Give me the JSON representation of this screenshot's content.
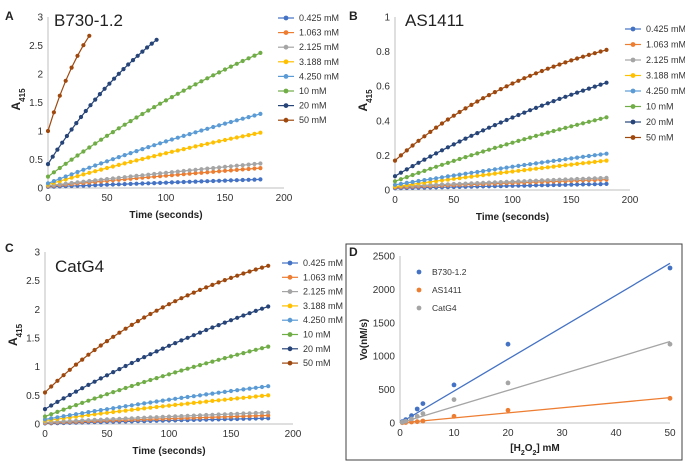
{
  "chart_data": [
    {
      "panel_letter": "A",
      "type": "scatter",
      "title": "B730-1.2",
      "xlabel": "Time (seconds)",
      "ylabel": "A",
      "ylabel_sub": "415",
      "xlim": [
        0,
        200
      ],
      "ylim": [
        0,
        3
      ],
      "xticks": [
        0,
        50,
        100,
        150,
        200
      ],
      "yticks": [
        0,
        0.5,
        1,
        1.5,
        2,
        2.5,
        3
      ],
      "ytick_labels": [
        "0",
        "0.5",
        "1",
        "1.5",
        "2",
        "2.5",
        "3"
      ],
      "legend_position": "right",
      "series": [
        {
          "name": "0.425 mM",
          "color": "#4472C4",
          "y0": 0.02,
          "y1": 0.15,
          "k": 0.1,
          "tEnd": 180,
          "step": 5
        },
        {
          "name": "1.063 mM",
          "color": "#ED7D31",
          "y0": 0.03,
          "y1": 0.35,
          "k": 0.2,
          "tEnd": 180,
          "step": 5
        },
        {
          "name": "2.125 mM",
          "color": "#A5A5A5",
          "y0": 0.04,
          "y1": 0.43,
          "k": 0.2,
          "tEnd": 180,
          "step": 5
        },
        {
          "name": "3.188 mM",
          "color": "#FFC000",
          "y0": 0.06,
          "y1": 0.97,
          "k": 0.4,
          "tEnd": 180,
          "step": 5
        },
        {
          "name": "4.250 mM",
          "color": "#5B9BD5",
          "y0": 0.08,
          "y1": 1.3,
          "k": 0.4,
          "tEnd": 180,
          "step": 5
        },
        {
          "name": "10 mM",
          "color": "#70AD47",
          "y0": 0.2,
          "y1": 2.37,
          "k": 0.5,
          "tEnd": 180,
          "step": 5
        },
        {
          "name": "20 mM",
          "color": "#264478",
          "y0": 0.42,
          "y1": 2.65,
          "k": 0.7,
          "tEnd": 95,
          "step": 4
        },
        {
          "name": "50 mM",
          "color": "#9E480E",
          "y0": 1.0,
          "y1": 2.67,
          "k": 0.8,
          "tEnd": 35,
          "step": 5
        }
      ]
    },
    {
      "panel_letter": "B",
      "type": "scatter",
      "title": "AS1411",
      "xlabel": "Time (seconds)",
      "ylabel": "A",
      "ylabel_sub": "415",
      "xlim": [
        0,
        200
      ],
      "ylim": [
        0,
        1
      ],
      "xticks": [
        0,
        50,
        100,
        150,
        200
      ],
      "yticks": [
        0,
        0.2,
        0.4,
        0.6,
        0.8,
        1
      ],
      "ytick_labels": [
        "0",
        "0.2",
        "0.4",
        "0.6",
        "0.8",
        "1"
      ],
      "legend_position": "right",
      "series": [
        {
          "name": "0.425 mM",
          "color": "#4472C4",
          "y0": 0.01,
          "y1": 0.035,
          "k": 0.1,
          "tEnd": 180,
          "step": 5
        },
        {
          "name": "1.063 mM",
          "color": "#ED7D31",
          "y0": 0.015,
          "y1": 0.06,
          "k": 0.1,
          "tEnd": 180,
          "step": 5
        },
        {
          "name": "2.125 mM",
          "color": "#A5A5A5",
          "y0": 0.02,
          "y1": 0.07,
          "k": 0.1,
          "tEnd": 180,
          "step": 5
        },
        {
          "name": "3.188 mM",
          "color": "#FFC000",
          "y0": 0.02,
          "y1": 0.17,
          "k": 0.2,
          "tEnd": 180,
          "step": 5
        },
        {
          "name": "4.250 mM",
          "color": "#5B9BD5",
          "y0": 0.03,
          "y1": 0.21,
          "k": 0.2,
          "tEnd": 180,
          "step": 5
        },
        {
          "name": "10 mM",
          "color": "#70AD47",
          "y0": 0.05,
          "y1": 0.42,
          "k": 0.4,
          "tEnd": 180,
          "step": 5
        },
        {
          "name": "20 mM",
          "color": "#264478",
          "y0": 0.08,
          "y1": 0.62,
          "k": 0.6,
          "tEnd": 180,
          "step": 5
        },
        {
          "name": "50 mM",
          "color": "#9E480E",
          "y0": 0.17,
          "y1": 0.81,
          "k": 1.2,
          "tEnd": 180,
          "step": 5
        }
      ]
    },
    {
      "panel_letter": "C",
      "type": "scatter",
      "title": "CatG4",
      "xlabel": "Time (seconds)",
      "ylabel": "A",
      "ylabel_sub": "415",
      "xlim": [
        0,
        200
      ],
      "ylim": [
        0,
        3
      ],
      "xticks": [
        0,
        50,
        100,
        150,
        200
      ],
      "yticks": [
        0,
        0.5,
        1,
        1.5,
        2,
        2.5,
        3
      ],
      "ytick_labels": [
        "0",
        "0.5",
        "1",
        "1.5",
        "2",
        "2.5",
        "3"
      ],
      "legend_position": "right",
      "series": [
        {
          "name": "0.425 mM",
          "color": "#4472C4",
          "y0": 0.01,
          "y1": 0.1,
          "k": 0.1,
          "tEnd": 180,
          "step": 5
        },
        {
          "name": "1.063 mM",
          "color": "#ED7D31",
          "y0": 0.02,
          "y1": 0.15,
          "k": 0.1,
          "tEnd": 180,
          "step": 5
        },
        {
          "name": "2.125 mM",
          "color": "#A5A5A5",
          "y0": 0.03,
          "y1": 0.2,
          "k": 0.2,
          "tEnd": 180,
          "step": 5
        },
        {
          "name": "3.188 mM",
          "color": "#FFC000",
          "y0": 0.06,
          "y1": 0.5,
          "k": 0.3,
          "tEnd": 180,
          "step": 5
        },
        {
          "name": "4.250 mM",
          "color": "#5B9BD5",
          "y0": 0.08,
          "y1": 0.66,
          "k": 0.3,
          "tEnd": 180,
          "step": 5
        },
        {
          "name": "10 mM",
          "color": "#70AD47",
          "y0": 0.13,
          "y1": 1.35,
          "k": 0.4,
          "tEnd": 180,
          "step": 5
        },
        {
          "name": "20 mM",
          "color": "#264478",
          "y0": 0.26,
          "y1": 2.05,
          "k": 0.5,
          "tEnd": 180,
          "step": 5
        },
        {
          "name": "50 mM",
          "color": "#9E480E",
          "y0": 0.55,
          "y1": 2.76,
          "k": 1.2,
          "tEnd": 180,
          "step": 5
        }
      ]
    },
    {
      "panel_letter": "D",
      "type": "scatter",
      "title": "",
      "xlabel_parts": [
        "[H",
        "2",
        "O",
        "2",
        "] mM"
      ],
      "ylabel": "Vo(nM/s)",
      "xlim": [
        0,
        50
      ],
      "ylim": [
        0,
        2500
      ],
      "xticks": [
        0,
        10,
        20,
        30,
        40,
        50
      ],
      "yticks": [
        0,
        500,
        1000,
        1500,
        2000,
        2500
      ],
      "ytick_labels": [
        "0",
        "500",
        "1000",
        "1500",
        "2000",
        "2500"
      ],
      "legend_position": "top-left",
      "series": [
        {
          "name": "B730-1.2",
          "color": "#4472C4",
          "x": [
            0.425,
            1.063,
            2.125,
            3.188,
            4.25,
            10,
            20,
            50
          ],
          "y": [
            20,
            50,
            110,
            210,
            290,
            570,
            1180,
            2320
          ],
          "fit": [
            0,
            2390
          ]
        },
        {
          "name": "AS1411",
          "color": "#ED7D31",
          "x": [
            0.425,
            1.063,
            2.125,
            3.188,
            4.25,
            10,
            20,
            50
          ],
          "y": [
            5,
            8,
            15,
            20,
            30,
            100,
            190,
            370
          ],
          "fit": [
            0,
            380
          ]
        },
        {
          "name": "CatG4",
          "color": "#A5A5A5",
          "x": [
            0.425,
            1.063,
            2.125,
            3.188,
            4.25,
            10,
            20,
            50
          ],
          "y": [
            10,
            25,
            60,
            100,
            140,
            350,
            600,
            1180
          ],
          "fit": [
            0,
            1220
          ]
        }
      ]
    }
  ]
}
